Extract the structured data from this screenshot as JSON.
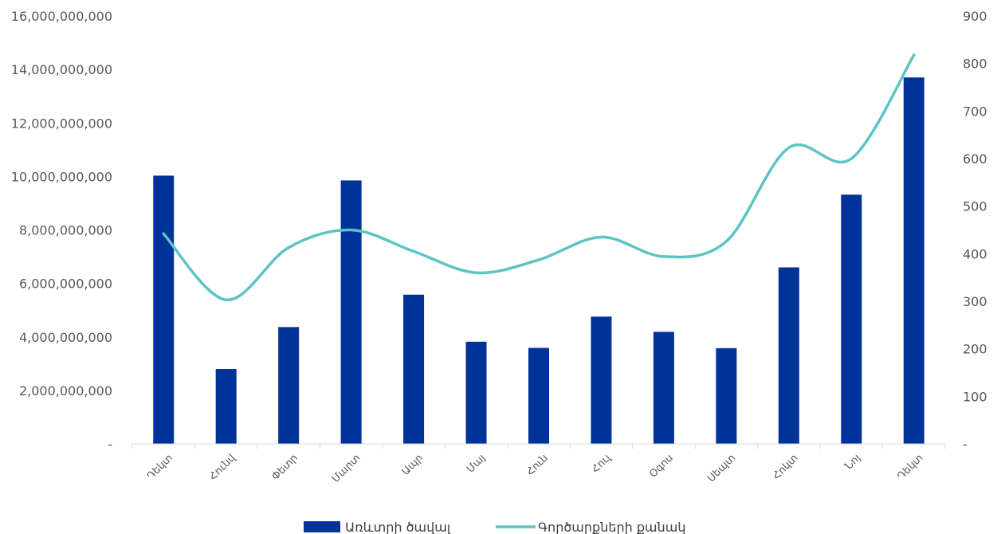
{
  "chart_data": {
    "type": "bar",
    "categories": [
      "Դեկտ",
      "Հունվ",
      "Փետր",
      "Մարտ",
      "Ապր",
      "Մայ",
      "Հուն",
      "Հուլ",
      "Օգոս",
      "Սեպտ",
      "Հոկտ",
      "Նոյ",
      "Դեկտ"
    ],
    "series": [
      {
        "name": "Առևտրի ծավալ",
        "type": "bar",
        "axis": "left",
        "color": "#003399",
        "values": [
          10030000000,
          2800000000,
          4370000000,
          9850000000,
          5580000000,
          3820000000,
          3590000000,
          4760000000,
          4190000000,
          3580000000,
          6600000000,
          9320000000,
          13700000000
        ]
      },
      {
        "name": "Գործարքների քանակ",
        "type": "line",
        "axis": "right",
        "color": "#5BC4C4",
        "values": [
          442,
          303,
          413,
          450,
          405,
          360,
          387,
          435,
          394,
          426,
          623,
          600,
          818
        ]
      }
    ],
    "y_left": {
      "min": 0,
      "max": 16000000000,
      "ticks": [
        0,
        2000000000,
        4000000000,
        6000000000,
        8000000000,
        10000000000,
        12000000000,
        14000000000,
        16000000000
      ],
      "tick_labels": [
        "-",
        "2,000,000,000",
        "4,000,000,000",
        "6,000,000,000",
        "8,000,000,000",
        "10,000,000,000",
        "12,000,000,000",
        "14,000,000,000",
        "16,000,000,000"
      ]
    },
    "y_right": {
      "min": 0,
      "max": 900,
      "ticks": [
        0,
        100,
        200,
        300,
        400,
        500,
        600,
        700,
        800,
        900
      ],
      "tick_labels": [
        "-",
        "100",
        "200",
        "300",
        "400",
        "500",
        "600",
        "700",
        "800",
        "900"
      ]
    },
    "grid": false,
    "legend_position": "bottom"
  }
}
